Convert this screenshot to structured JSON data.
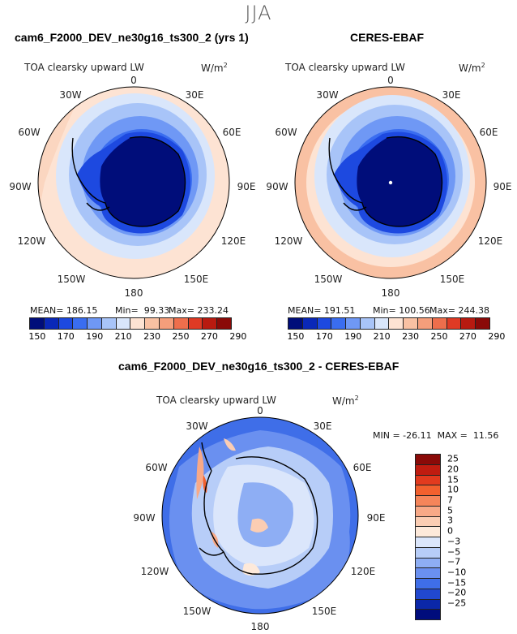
{
  "season": "JJA",
  "panels": {
    "model": {
      "title": "cam6_F2000_DEV_ne30g16_ts300_2 (yrs 1)",
      "variable": "TOA clearsky upward LW",
      "units": "W/m",
      "units_sup": "2",
      "stats": {
        "mean": "MEAN= 186.15",
        "min": "Min=  99.33",
        "max": "Max= 233.24"
      }
    },
    "obs": {
      "title": "CERES-EBAF",
      "variable": "TOA clearsky upward LW",
      "units": "W/m",
      "units_sup": "2",
      "stats": {
        "mean": "MEAN= 191.51",
        "min": "Min= 100.56",
        "max": "Max= 244.38"
      }
    },
    "diff": {
      "title": "cam6_F2000_DEV_ne30g16_ts300_2 - CERES-EBAF",
      "variable": "TOA clearsky upward LW",
      "units": "W/m",
      "units_sup": "2",
      "stats": {
        "minmax": "MIN = -26.11  MAX =  11.56"
      }
    }
  },
  "longitude_labels": {
    "l0": "0",
    "l30e": "30E",
    "l60e": "60E",
    "l90e": "90E",
    "l120e": "120E",
    "l150e": "150E",
    "l180": "180",
    "l150w": "150W",
    "l120w": "120W",
    "l90w": "90W",
    "l60w": "60W",
    "l30w": "30W"
  },
  "colorbar_abs": {
    "labels": [
      "150",
      "170",
      "190",
      "210",
      "230",
      "250",
      "270",
      "290"
    ],
    "colors": [
      "#000d7a",
      "#0a28b8",
      "#1d49e0",
      "#3a6df0",
      "#6f98f5",
      "#a8c4f8",
      "#d9e6fb",
      "#fde3d3",
      "#f9c1a3",
      "#f59e7b",
      "#ee6e4c",
      "#df3a24",
      "#b81a10",
      "#8a0a08"
    ]
  },
  "colorbar_diff": {
    "labels": [
      "25",
      "20",
      "15",
      "10",
      "7",
      "5",
      "3",
      "0",
      "−3",
      "−5",
      "−7",
      "−10",
      "−15",
      "−20",
      "−25"
    ],
    "colors": [
      "#8a0a08",
      "#c01c10",
      "#e23a1e",
      "#f2602e",
      "#f5855a",
      "#f8a987",
      "#fbcdb3",
      "#fde9da",
      "#dbe6fb",
      "#b7cdf8",
      "#8eaef4",
      "#6a90f0",
      "#3f6ee8",
      "#2148cf",
      "#0b27a8",
      "#000c7c"
    ]
  }
}
